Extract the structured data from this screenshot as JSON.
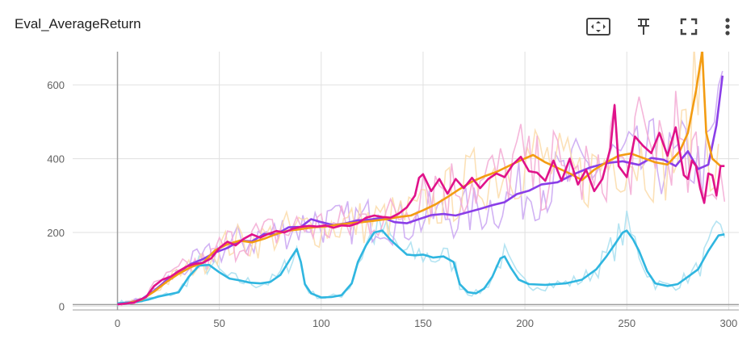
{
  "card": {
    "title": "Eval_AverageReturn"
  },
  "toolbar": {
    "fit_icon": "fit-to-data-icon",
    "pin_icon": "pin-icon",
    "fullscreen_icon": "fullscreen-icon",
    "more_icon": "more-vert-icon"
  },
  "chart_data": {
    "type": "line",
    "title": "Eval_AverageReturn",
    "xlabel": "",
    "ylabel": "",
    "xlim": [
      -22,
      305
    ],
    "ylim": [
      -10,
      690
    ],
    "grid": true,
    "legend": "none",
    "xticks": [
      0,
      50,
      100,
      150,
      200,
      250,
      300
    ],
    "yticks": [
      0,
      200,
      400,
      600
    ],
    "xtick_labels": [
      "0",
      "50",
      "100",
      "150",
      "200",
      "250",
      "300"
    ],
    "ytick_labels": [
      "0",
      "200",
      "400",
      "600"
    ],
    "series": [
      {
        "color": "#2fb6e0",
        "raw_color": "#a8dff0",
        "points": [
          [
            0,
            8
          ],
          [
            10,
            12
          ],
          [
            15,
            18
          ],
          [
            20,
            26
          ],
          [
            25,
            32
          ],
          [
            30,
            38
          ],
          [
            35,
            80
          ],
          [
            40,
            110
          ],
          [
            45,
            112
          ],
          [
            50,
            92
          ],
          [
            55,
            75
          ],
          [
            60,
            70
          ],
          [
            65,
            64
          ],
          [
            70,
            62
          ],
          [
            75,
            66
          ],
          [
            80,
            85
          ],
          [
            85,
            130
          ],
          [
            88,
            155
          ],
          [
            90,
            120
          ],
          [
            92,
            60
          ],
          [
            95,
            35
          ],
          [
            100,
            24
          ],
          [
            105,
            25
          ],
          [
            110,
            30
          ],
          [
            115,
            62
          ],
          [
            118,
            120
          ],
          [
            122,
            165
          ],
          [
            126,
            200
          ],
          [
            130,
            205
          ],
          [
            134,
            180
          ],
          [
            138,
            160
          ],
          [
            142,
            140
          ],
          [
            146,
            138
          ],
          [
            150,
            140
          ],
          [
            155,
            132
          ],
          [
            160,
            135
          ],
          [
            165,
            120
          ],
          [
            168,
            60
          ],
          [
            172,
            38
          ],
          [
            176,
            35
          ],
          [
            180,
            48
          ],
          [
            184,
            80
          ],
          [
            188,
            130
          ],
          [
            190,
            135
          ],
          [
            193,
            105
          ],
          [
            197,
            72
          ],
          [
            202,
            60
          ],
          [
            210,
            58
          ],
          [
            220,
            62
          ],
          [
            228,
            72
          ],
          [
            235,
            100
          ],
          [
            240,
            135
          ],
          [
            245,
            175
          ],
          [
            248,
            200
          ],
          [
            250,
            205
          ],
          [
            253,
            182
          ],
          [
            256,
            150
          ],
          [
            260,
            95
          ],
          [
            264,
            62
          ],
          [
            270,
            55
          ],
          [
            275,
            60
          ],
          [
            280,
            80
          ],
          [
            285,
            100
          ],
          [
            290,
            150
          ],
          [
            295,
            192
          ],
          [
            298,
            195
          ]
        ]
      },
      {
        "color": "#8a3ee8",
        "raw_color": "#c9a4f2",
        "points": [
          [
            5,
            8
          ],
          [
            12,
            20
          ],
          [
            18,
            42
          ],
          [
            24,
            70
          ],
          [
            30,
            92
          ],
          [
            36,
            115
          ],
          [
            42,
            128
          ],
          [
            48,
            146
          ],
          [
            54,
            158
          ],
          [
            60,
            178
          ],
          [
            66,
            176
          ],
          [
            72,
            196
          ],
          [
            78,
            195
          ],
          [
            84,
            214
          ],
          [
            90,
            215
          ],
          [
            95,
            236
          ],
          [
            100,
            228
          ],
          [
            106,
            220
          ],
          [
            112,
            225
          ],
          [
            118,
            233
          ],
          [
            124,
            235
          ],
          [
            130,
            240
          ],
          [
            136,
            228
          ],
          [
            142,
            225
          ],
          [
            148,
            236
          ],
          [
            154,
            247
          ],
          [
            160,
            250
          ],
          [
            166,
            246
          ],
          [
            172,
            255
          ],
          [
            178,
            264
          ],
          [
            184,
            274
          ],
          [
            190,
            282
          ],
          [
            196,
            304
          ],
          [
            202,
            313
          ],
          [
            208,
            330
          ],
          [
            216,
            336
          ],
          [
            224,
            358
          ],
          [
            232,
            376
          ],
          [
            240,
            388
          ],
          [
            248,
            393
          ],
          [
            256,
            383
          ],
          [
            262,
            402
          ],
          [
            268,
            397
          ],
          [
            274,
            380
          ],
          [
            280,
            420
          ],
          [
            285,
            372
          ],
          [
            290,
            384
          ],
          [
            294,
            490
          ],
          [
            297,
            625
          ]
        ]
      },
      {
        "color": "#f39c12",
        "raw_color": "#fbdcaa",
        "points": [
          [
            5,
            8
          ],
          [
            12,
            18
          ],
          [
            18,
            40
          ],
          [
            24,
            66
          ],
          [
            30,
            88
          ],
          [
            36,
            106
          ],
          [
            42,
            118
          ],
          [
            48,
            152
          ],
          [
            54,
            168
          ],
          [
            60,
            178
          ],
          [
            66,
            173
          ],
          [
            72,
            183
          ],
          [
            78,
            196
          ],
          [
            84,
            205
          ],
          [
            90,
            209
          ],
          [
            96,
            214
          ],
          [
            102,
            216
          ],
          [
            108,
            221
          ],
          [
            114,
            225
          ],
          [
            120,
            228
          ],
          [
            126,
            232
          ],
          [
            132,
            236
          ],
          [
            138,
            242
          ],
          [
            144,
            246
          ],
          [
            150,
            260
          ],
          [
            156,
            276
          ],
          [
            162,
            296
          ],
          [
            168,
            318
          ],
          [
            174,
            338
          ],
          [
            180,
            352
          ],
          [
            186,
            364
          ],
          [
            192,
            380
          ],
          [
            198,
            396
          ],
          [
            204,
            410
          ],
          [
            210,
            390
          ],
          [
            216,
            375
          ],
          [
            222,
            360
          ],
          [
            228,
            342
          ],
          [
            234,
            370
          ],
          [
            240,
            390
          ],
          [
            246,
            408
          ],
          [
            252,
            414
          ],
          [
            258,
            402
          ],
          [
            264,
            390
          ],
          [
            270,
            384
          ],
          [
            276,
            420
          ],
          [
            280,
            470
          ],
          [
            284,
            585
          ],
          [
            287,
            690
          ],
          [
            289,
            470
          ],
          [
            292,
            400
          ],
          [
            296,
            380
          ]
        ]
      },
      {
        "color": "#e0128a",
        "raw_color": "#f3a9d4",
        "points": [
          [
            0,
            5
          ],
          [
            8,
            10
          ],
          [
            14,
            25
          ],
          [
            18,
            55
          ],
          [
            22,
            72
          ],
          [
            26,
            80
          ],
          [
            30,
            95
          ],
          [
            34,
            108
          ],
          [
            38,
            115
          ],
          [
            42,
            118
          ],
          [
            46,
            130
          ],
          [
            50,
            158
          ],
          [
            54,
            175
          ],
          [
            58,
            165
          ],
          [
            62,
            183
          ],
          [
            66,
            195
          ],
          [
            70,
            186
          ],
          [
            74,
            196
          ],
          [
            78,
            204
          ],
          [
            82,
            200
          ],
          [
            86,
            210
          ],
          [
            90,
            215
          ],
          [
            94,
            218
          ],
          [
            98,
            216
          ],
          [
            102,
            219
          ],
          [
            106,
            213
          ],
          [
            110,
            219
          ],
          [
            114,
            218
          ],
          [
            118,
            225
          ],
          [
            122,
            240
          ],
          [
            126,
            246
          ],
          [
            130,
            242
          ],
          [
            134,
            240
          ],
          [
            138,
            251
          ],
          [
            142,
            268
          ],
          [
            146,
            300
          ],
          [
            148,
            348
          ],
          [
            150,
            358
          ],
          [
            154,
            312
          ],
          [
            158,
            345
          ],
          [
            162,
            305
          ],
          [
            166,
            345
          ],
          [
            170,
            320
          ],
          [
            174,
            348
          ],
          [
            178,
            320
          ],
          [
            182,
            345
          ],
          [
            186,
            360
          ],
          [
            190,
            350
          ],
          [
            194,
            384
          ],
          [
            198,
            405
          ],
          [
            202,
            366
          ],
          [
            206,
            362
          ],
          [
            210,
            340
          ],
          [
            214,
            395
          ],
          [
            218,
            340
          ],
          [
            222,
            400
          ],
          [
            226,
            330
          ],
          [
            230,
            370
          ],
          [
            234,
            312
          ],
          [
            238,
            345
          ],
          [
            242,
            430
          ],
          [
            244,
            545
          ],
          [
            246,
            380
          ],
          [
            250,
            350
          ],
          [
            254,
            460
          ],
          [
            258,
            435
          ],
          [
            262,
            415
          ],
          [
            266,
            470
          ],
          [
            270,
            408
          ],
          [
            274,
            485
          ],
          [
            276,
            420
          ],
          [
            278,
            355
          ],
          [
            280,
            345
          ],
          [
            282,
            395
          ],
          [
            284,
            380
          ],
          [
            286,
            320
          ],
          [
            288,
            280
          ],
          [
            290,
            360
          ],
          [
            292,
            355
          ],
          [
            294,
            300
          ],
          [
            296,
            380
          ],
          [
            298,
            380
          ]
        ]
      }
    ]
  }
}
